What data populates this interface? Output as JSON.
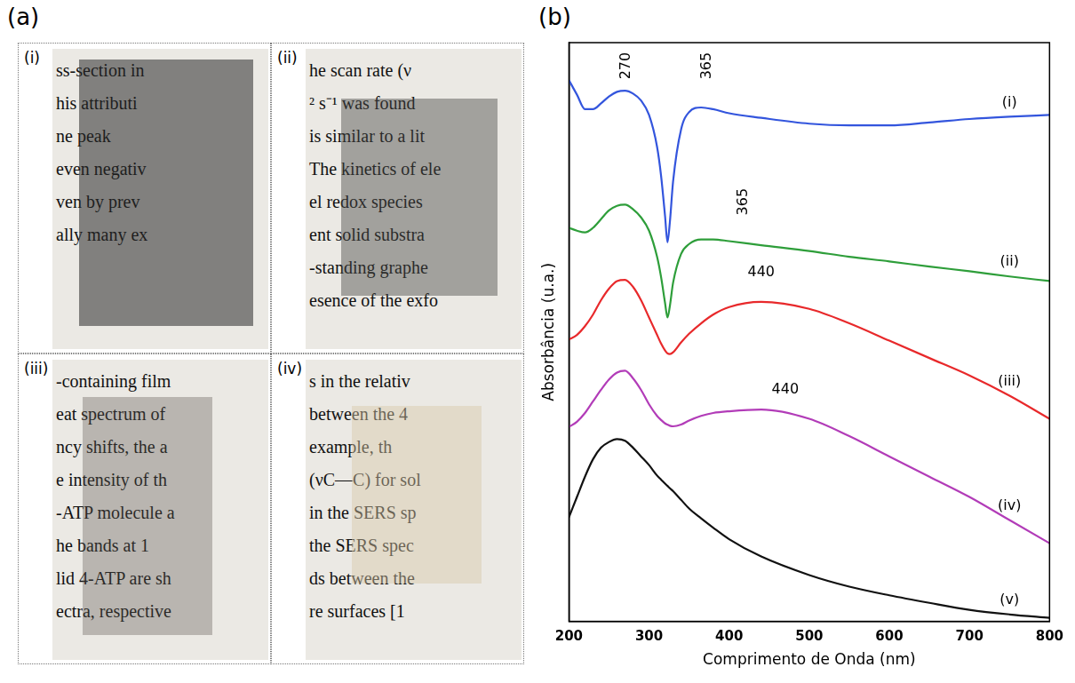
{
  "panel_labels": [
    "(a)",
    "(b)"
  ],
  "photos": [
    {
      "label": "(i)",
      "text_lines": [
        "ss-section in",
        "his attributi",
        "ne peak",
        "even negativ",
        "ven by prev",
        "ally many ex"
      ]
    },
    {
      "label": "(ii)",
      "text_lines": [
        "he scan rate (ν",
        "² s⁻¹ was found",
        "is similar to a lit",
        "The kinetics of ele",
        "el redox species",
        "ent solid substra",
        "-standing graphe",
        "esence of the exfo"
      ]
    },
    {
      "label": "(iii)",
      "text_lines": [
        "-containing film",
        "eat spectrum of",
        "ncy shifts, the a",
        "e intensity of th",
        "-ATP molecule a",
        "he bands at 1",
        "lid 4-ATP are sh",
        "ectra, respective"
      ]
    },
    {
      "label": "(iv)",
      "text_lines": [
        "s in the relativ",
        "between the 4",
        "example, th",
        "(νC—C) for sol",
        "in the SERS sp",
        "the SERS spec",
        "ds between the",
        "re surfaces [1"
      ]
    }
  ],
  "chart_data": {
    "type": "line",
    "xlabel": "Comprimento de Onda (nm)",
    "ylabel": "Absorbância (u.a.)",
    "x": [
      200,
      210,
      220,
      230,
      240,
      250,
      260,
      270,
      280,
      290,
      300,
      310,
      315,
      320,
      323,
      326,
      330,
      340,
      350,
      365,
      380,
      400,
      440,
      500,
      550,
      600,
      650,
      700,
      750,
      800
    ],
    "series": [
      {
        "name": "(i)",
        "color": "#3355dd",
        "values": [
          9.35,
          9.1,
          8.85,
          8.85,
          8.95,
          9.07,
          9.15,
          9.17,
          9.12,
          9.0,
          8.75,
          8.2,
          7.7,
          7.0,
          6.55,
          6.9,
          7.6,
          8.5,
          8.8,
          8.88,
          8.85,
          8.78,
          8.7,
          8.6,
          8.57,
          8.57,
          8.62,
          8.68,
          8.72,
          8.75
        ]
      },
      {
        "name": "(ii)",
        "color": "#2e9e3a",
        "values": [
          6.8,
          6.75,
          6.72,
          6.8,
          6.95,
          7.1,
          7.18,
          7.2,
          7.12,
          6.98,
          6.75,
          6.3,
          5.95,
          5.5,
          5.25,
          5.45,
          5.85,
          6.35,
          6.52,
          6.6,
          6.6,
          6.57,
          6.5,
          6.4,
          6.3,
          6.22,
          6.13,
          6.05,
          5.96,
          5.88
        ]
      },
      {
        "name": "(iii)",
        "color": "#e8292b",
        "values": [
          4.87,
          4.95,
          5.1,
          5.3,
          5.55,
          5.75,
          5.88,
          5.9,
          5.78,
          5.55,
          5.25,
          4.95,
          4.8,
          4.68,
          4.63,
          4.62,
          4.65,
          4.82,
          4.97,
          5.15,
          5.3,
          5.43,
          5.52,
          5.4,
          5.15,
          4.85,
          4.55,
          4.25,
          3.9,
          3.5
        ]
      },
      {
        "name": "(iv)",
        "color": "#b23cb8",
        "values": [
          3.36,
          3.45,
          3.6,
          3.8,
          4.0,
          4.18,
          4.3,
          4.33,
          4.2,
          4.0,
          3.75,
          3.55,
          3.48,
          3.42,
          3.4,
          3.38,
          3.37,
          3.4,
          3.47,
          3.55,
          3.6,
          3.63,
          3.66,
          3.5,
          3.2,
          2.85,
          2.5,
          2.15,
          1.75,
          1.35
        ]
      },
      {
        "name": "(v)",
        "color": "#111111",
        "values": [
          1.8,
          2.15,
          2.5,
          2.8,
          3.0,
          3.1,
          3.15,
          3.12,
          3.0,
          2.85,
          2.7,
          2.52,
          2.45,
          2.38,
          2.34,
          2.3,
          2.25,
          2.1,
          1.95,
          1.78,
          1.62,
          1.42,
          1.12,
          0.8,
          0.6,
          0.45,
          0.32,
          0.2,
          0.12,
          0.06
        ]
      }
    ],
    "xlim": [
      200,
      800
    ],
    "ylim": [
      0,
      10
    ],
    "xticks": [
      200,
      300,
      400,
      500,
      600,
      700,
      800
    ],
    "yticks": [],
    "tick_labels": "x",
    "grid": false,
    "annotations": [
      {
        "text": "270",
        "x": 271,
        "y": 9.6
      },
      {
        "text": "365",
        "x": 372,
        "y": 9.6
      },
      {
        "text": "365",
        "x": 418,
        "y": 7.25
      },
      {
        "text": "440",
        "x": 440,
        "y": 6.02
      },
      {
        "text": "440",
        "x": 470,
        "y": 4.0
      }
    ]
  }
}
